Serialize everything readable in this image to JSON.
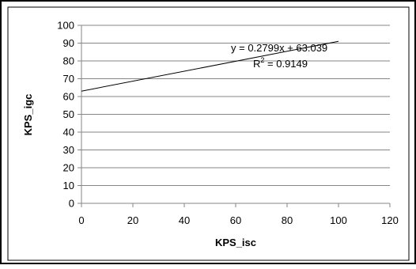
{
  "chart_data": {
    "type": "line",
    "title": "",
    "xlabel": "KPS_isc",
    "ylabel": "KPS_igc",
    "xlim": [
      0,
      120
    ],
    "ylim": [
      0,
      100
    ],
    "xticks": [
      0,
      20,
      40,
      60,
      80,
      100,
      120
    ],
    "yticks": [
      0,
      10,
      20,
      30,
      40,
      50,
      60,
      70,
      80,
      90,
      100
    ],
    "grid": "horizontal",
    "legend": "none",
    "series": [
      {
        "x": [
          0,
          100
        ],
        "y": [
          63.039,
          91.029
        ],
        "color": "#000000"
      }
    ],
    "annotations": {
      "equation": "y = 0.2799x + 63.039",
      "r2_prefix": "R",
      "r2_sup": "2",
      "r2_value": " = 0.9149"
    },
    "colors": {
      "line": "#000000",
      "grid": "#868686",
      "axis": "#868686",
      "border": "#000000"
    }
  }
}
